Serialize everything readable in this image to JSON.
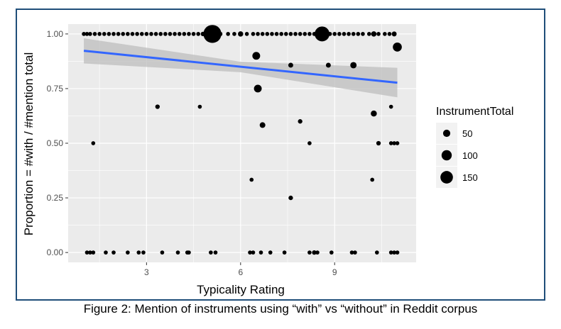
{
  "caption": "Figure 2:  Mention of instruments using “with” vs “without” in Reddit corpus",
  "chart_data": {
    "type": "scatter",
    "title": "",
    "xlabel": "Typicality Rating",
    "ylabel": "Proportion = #with / #mention total",
    "xlim": [
      0.5,
      11.6
    ],
    "ylim": [
      -0.045,
      1.045
    ],
    "x_ticks": [
      3,
      6,
      9
    ],
    "y_ticks": [
      0.0,
      0.25,
      0.5,
      0.75,
      1.0
    ],
    "x_tick_labels": [
      "3",
      "6",
      "9"
    ],
    "y_tick_labels": [
      "0.00",
      "0.25",
      "0.50",
      "0.75",
      "1.00"
    ],
    "grid": true,
    "legend": {
      "title": "InstrumentTotal",
      "position": "right",
      "entries": [
        {
          "label": "50",
          "size": 50
        },
        {
          "label": "100",
          "size": 100
        },
        {
          "label": "150",
          "size": 150
        }
      ]
    },
    "colors": {
      "panel_bg": "#ebebeb",
      "grid": "#ffffff",
      "points": "#000000",
      "trend": "#3366ff",
      "ribbon": "#bdbdbd",
      "frame": "#1f4e79"
    },
    "points": [
      {
        "x": 1.0,
        "y": 1.0,
        "size": 8
      },
      {
        "x": 1.1,
        "y": 1.0,
        "size": 8
      },
      {
        "x": 1.2,
        "y": 1.0,
        "size": 8
      },
      {
        "x": 1.35,
        "y": 1.0,
        "size": 8
      },
      {
        "x": 1.5,
        "y": 1.0,
        "size": 8
      },
      {
        "x": 1.65,
        "y": 1.0,
        "size": 8
      },
      {
        "x": 1.8,
        "y": 1.0,
        "size": 8
      },
      {
        "x": 1.95,
        "y": 1.0,
        "size": 8
      },
      {
        "x": 2.1,
        "y": 1.0,
        "size": 8
      },
      {
        "x": 2.25,
        "y": 1.0,
        "size": 8
      },
      {
        "x": 2.4,
        "y": 1.0,
        "size": 8
      },
      {
        "x": 2.55,
        "y": 1.0,
        "size": 8
      },
      {
        "x": 2.7,
        "y": 1.0,
        "size": 8
      },
      {
        "x": 2.85,
        "y": 1.0,
        "size": 8
      },
      {
        "x": 3.0,
        "y": 1.0,
        "size": 8
      },
      {
        "x": 3.15,
        "y": 1.0,
        "size": 8
      },
      {
        "x": 3.3,
        "y": 1.0,
        "size": 8
      },
      {
        "x": 3.45,
        "y": 1.0,
        "size": 8
      },
      {
        "x": 3.6,
        "y": 1.0,
        "size": 8
      },
      {
        "x": 3.75,
        "y": 1.0,
        "size": 8
      },
      {
        "x": 3.9,
        "y": 1.0,
        "size": 8
      },
      {
        "x": 4.05,
        "y": 1.0,
        "size": 8
      },
      {
        "x": 4.2,
        "y": 1.0,
        "size": 8
      },
      {
        "x": 4.35,
        "y": 1.0,
        "size": 8
      },
      {
        "x": 4.5,
        "y": 1.0,
        "size": 8
      },
      {
        "x": 4.65,
        "y": 1.0,
        "size": 8
      },
      {
        "x": 4.8,
        "y": 1.0,
        "size": 10
      },
      {
        "x": 5.1,
        "y": 1.0,
        "size": 160
      },
      {
        "x": 5.35,
        "y": 1.0,
        "size": 10
      },
      {
        "x": 5.6,
        "y": 1.0,
        "size": 8
      },
      {
        "x": 5.8,
        "y": 1.0,
        "size": 8
      },
      {
        "x": 6.0,
        "y": 1.0,
        "size": 14
      },
      {
        "x": 6.2,
        "y": 1.0,
        "size": 8
      },
      {
        "x": 6.4,
        "y": 1.0,
        "size": 8
      },
      {
        "x": 6.55,
        "y": 1.0,
        "size": 8
      },
      {
        "x": 6.7,
        "y": 1.0,
        "size": 8
      },
      {
        "x": 6.85,
        "y": 1.0,
        "size": 8
      },
      {
        "x": 7.0,
        "y": 1.0,
        "size": 8
      },
      {
        "x": 7.15,
        "y": 1.0,
        "size": 8
      },
      {
        "x": 7.3,
        "y": 1.0,
        "size": 8
      },
      {
        "x": 7.45,
        "y": 1.0,
        "size": 8
      },
      {
        "x": 7.6,
        "y": 1.0,
        "size": 8
      },
      {
        "x": 7.75,
        "y": 1.0,
        "size": 8
      },
      {
        "x": 7.9,
        "y": 1.0,
        "size": 8
      },
      {
        "x": 8.05,
        "y": 1.0,
        "size": 8
      },
      {
        "x": 8.2,
        "y": 1.0,
        "size": 8
      },
      {
        "x": 8.35,
        "y": 1.0,
        "size": 8
      },
      {
        "x": 8.6,
        "y": 1.0,
        "size": 110
      },
      {
        "x": 8.85,
        "y": 1.0,
        "size": 8
      },
      {
        "x": 9.0,
        "y": 1.0,
        "size": 8
      },
      {
        "x": 9.15,
        "y": 1.0,
        "size": 8
      },
      {
        "x": 9.3,
        "y": 1.0,
        "size": 8
      },
      {
        "x": 9.45,
        "y": 1.0,
        "size": 8
      },
      {
        "x": 9.6,
        "y": 1.0,
        "size": 8
      },
      {
        "x": 9.75,
        "y": 1.0,
        "size": 8
      },
      {
        "x": 9.9,
        "y": 1.0,
        "size": 8
      },
      {
        "x": 10.1,
        "y": 1.0,
        "size": 8
      },
      {
        "x": 10.25,
        "y": 1.0,
        "size": 14
      },
      {
        "x": 10.4,
        "y": 1.0,
        "size": 8
      },
      {
        "x": 10.6,
        "y": 1.0,
        "size": 8
      },
      {
        "x": 10.75,
        "y": 1.0,
        "size": 8
      },
      {
        "x": 10.9,
        "y": 1.0,
        "size": 12
      },
      {
        "x": 11.0,
        "y": 0.94,
        "size": 40
      },
      {
        "x": 6.5,
        "y": 0.9,
        "size": 30
      },
      {
        "x": 7.6,
        "y": 0.857,
        "size": 12
      },
      {
        "x": 8.8,
        "y": 0.857,
        "size": 12
      },
      {
        "x": 9.6,
        "y": 0.857,
        "size": 20
      },
      {
        "x": 6.55,
        "y": 0.75,
        "size": 30
      },
      {
        "x": 3.35,
        "y": 0.667,
        "size": 10
      },
      {
        "x": 4.7,
        "y": 0.667,
        "size": 8
      },
      {
        "x": 10.8,
        "y": 0.667,
        "size": 8
      },
      {
        "x": 10.25,
        "y": 0.636,
        "size": 18
      },
      {
        "x": 7.9,
        "y": 0.6,
        "size": 10
      },
      {
        "x": 6.7,
        "y": 0.583,
        "size": 16
      },
      {
        "x": 1.3,
        "y": 0.5,
        "size": 8
      },
      {
        "x": 8.2,
        "y": 0.5,
        "size": 8
      },
      {
        "x": 10.4,
        "y": 0.5,
        "size": 10
      },
      {
        "x": 10.8,
        "y": 0.5,
        "size": 8
      },
      {
        "x": 10.9,
        "y": 0.5,
        "size": 8
      },
      {
        "x": 11.0,
        "y": 0.5,
        "size": 8
      },
      {
        "x": 6.35,
        "y": 0.333,
        "size": 8
      },
      {
        "x": 10.2,
        "y": 0.333,
        "size": 8
      },
      {
        "x": 7.6,
        "y": 0.25,
        "size": 10
      },
      {
        "x": 1.1,
        "y": 0.0,
        "size": 8
      },
      {
        "x": 1.2,
        "y": 0.0,
        "size": 8
      },
      {
        "x": 1.3,
        "y": 0.0,
        "size": 8
      },
      {
        "x": 1.7,
        "y": 0.0,
        "size": 8
      },
      {
        "x": 1.95,
        "y": 0.0,
        "size": 8
      },
      {
        "x": 2.4,
        "y": 0.0,
        "size": 8
      },
      {
        "x": 2.75,
        "y": 0.0,
        "size": 8
      },
      {
        "x": 2.9,
        "y": 0.0,
        "size": 8
      },
      {
        "x": 3.5,
        "y": 0.0,
        "size": 8
      },
      {
        "x": 4.0,
        "y": 0.0,
        "size": 8
      },
      {
        "x": 4.3,
        "y": 0.0,
        "size": 8
      },
      {
        "x": 4.35,
        "y": 0.0,
        "size": 8
      },
      {
        "x": 5.05,
        "y": 0.0,
        "size": 8
      },
      {
        "x": 5.2,
        "y": 0.0,
        "size": 8
      },
      {
        "x": 6.3,
        "y": 0.0,
        "size": 8
      },
      {
        "x": 6.4,
        "y": 0.0,
        "size": 8
      },
      {
        "x": 6.65,
        "y": 0.0,
        "size": 8
      },
      {
        "x": 6.95,
        "y": 0.0,
        "size": 8
      },
      {
        "x": 7.4,
        "y": 0.0,
        "size": 8
      },
      {
        "x": 8.2,
        "y": 0.0,
        "size": 8
      },
      {
        "x": 8.35,
        "y": 0.0,
        "size": 10
      },
      {
        "x": 8.45,
        "y": 0.0,
        "size": 8
      },
      {
        "x": 8.9,
        "y": 0.0,
        "size": 8
      },
      {
        "x": 9.55,
        "y": 0.0,
        "size": 8
      },
      {
        "x": 9.65,
        "y": 0.0,
        "size": 8
      },
      {
        "x": 10.35,
        "y": 0.0,
        "size": 8
      },
      {
        "x": 10.8,
        "y": 0.0,
        "size": 8
      },
      {
        "x": 10.9,
        "y": 0.0,
        "size": 8
      },
      {
        "x": 11.0,
        "y": 0.0,
        "size": 8
      }
    ],
    "trend_line": {
      "method": "linear",
      "x": [
        1.0,
        11.0
      ],
      "y": [
        0.923,
        0.777
      ]
    },
    "confidence_band": {
      "x": [
        1.0,
        6.0,
        11.0
      ],
      "lower": [
        0.865,
        0.825,
        0.71
      ],
      "upper": [
        0.98,
        0.873,
        0.845
      ]
    }
  }
}
